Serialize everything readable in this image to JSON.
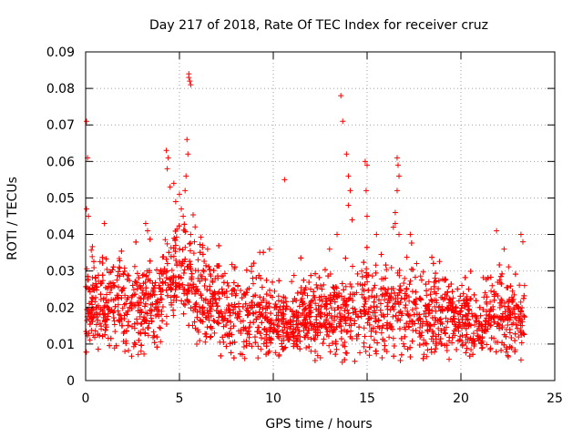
{
  "chart_data": {
    "type": "scatter",
    "title": "Day 217 of 2018, Rate Of TEC Index for receiver cruz",
    "xlabel": "GPS time / hours",
    "ylabel": "ROTI / TECUs",
    "xlim": [
      0,
      25
    ],
    "ylim": [
      0,
      0.09
    ],
    "xticks": [
      "0",
      "5",
      "10",
      "15",
      "20",
      "25"
    ],
    "yticks": [
      "0",
      "0.01",
      "0.02",
      "0.03",
      "0.04",
      "0.05",
      "0.06",
      "0.07",
      "0.08",
      "0.09"
    ],
    "grid": true,
    "marker": "+",
    "color": "#ff0000",
    "series": [
      {
        "name": "ROTI",
        "density_profile": [
          [
            0.0,
            0.02,
            0.006
          ],
          [
            0.5,
            0.022,
            0.006
          ],
          [
            1.0,
            0.02,
            0.006
          ],
          [
            1.5,
            0.021,
            0.006
          ],
          [
            2.0,
            0.02,
            0.006
          ],
          [
            2.5,
            0.019,
            0.007
          ],
          [
            3.0,
            0.02,
            0.007
          ],
          [
            3.5,
            0.021,
            0.006
          ],
          [
            4.0,
            0.024,
            0.006
          ],
          [
            4.5,
            0.028,
            0.006
          ],
          [
            5.0,
            0.03,
            0.006
          ],
          [
            5.5,
            0.028,
            0.007
          ],
          [
            6.0,
            0.025,
            0.007
          ],
          [
            6.5,
            0.022,
            0.006
          ],
          [
            7.0,
            0.02,
            0.006
          ],
          [
            7.5,
            0.019,
            0.006
          ],
          [
            8.0,
            0.018,
            0.006
          ],
          [
            8.5,
            0.019,
            0.006
          ],
          [
            9.0,
            0.018,
            0.005
          ],
          [
            9.5,
            0.017,
            0.005
          ],
          [
            10.0,
            0.016,
            0.005
          ],
          [
            10.5,
            0.015,
            0.005
          ],
          [
            11.0,
            0.015,
            0.004
          ],
          [
            11.5,
            0.016,
            0.005
          ],
          [
            12.0,
            0.017,
            0.005
          ],
          [
            12.5,
            0.017,
            0.005
          ],
          [
            13.0,
            0.018,
            0.005
          ],
          [
            13.5,
            0.019,
            0.006
          ],
          [
            14.0,
            0.02,
            0.006
          ],
          [
            14.5,
            0.021,
            0.006
          ],
          [
            15.0,
            0.02,
            0.006
          ],
          [
            15.5,
            0.019,
            0.006
          ],
          [
            16.0,
            0.019,
            0.006
          ],
          [
            16.5,
            0.02,
            0.006
          ],
          [
            17.0,
            0.02,
            0.006
          ],
          [
            17.5,
            0.019,
            0.006
          ],
          [
            18.0,
            0.018,
            0.006
          ],
          [
            18.5,
            0.019,
            0.006
          ],
          [
            19.0,
            0.018,
            0.006
          ],
          [
            19.5,
            0.017,
            0.005
          ],
          [
            20.0,
            0.017,
            0.005
          ],
          [
            20.5,
            0.016,
            0.005
          ],
          [
            21.0,
            0.017,
            0.005
          ],
          [
            21.5,
            0.018,
            0.006
          ],
          [
            22.0,
            0.019,
            0.006
          ],
          [
            22.5,
            0.018,
            0.006
          ],
          [
            23.0,
            0.017,
            0.005
          ],
          [
            23.4,
            0.018,
            0.005
          ]
        ],
        "spike_points": [
          [
            0.05,
            0.071
          ],
          [
            0.1,
            0.061
          ],
          [
            0.05,
            0.047
          ],
          [
            0.15,
            0.045
          ],
          [
            1.0,
            0.043
          ],
          [
            3.2,
            0.043
          ],
          [
            3.3,
            0.041
          ],
          [
            4.3,
            0.063
          ],
          [
            4.4,
            0.061
          ],
          [
            4.35,
            0.058
          ],
          [
            4.5,
            0.053
          ],
          [
            4.7,
            0.054
          ],
          [
            4.8,
            0.049
          ],
          [
            5.0,
            0.051
          ],
          [
            5.1,
            0.047
          ],
          [
            5.2,
            0.045
          ],
          [
            5.3,
            0.052
          ],
          [
            5.35,
            0.056
          ],
          [
            5.4,
            0.066
          ],
          [
            5.45,
            0.062
          ],
          [
            5.5,
            0.083
          ],
          [
            5.55,
            0.082
          ],
          [
            5.6,
            0.081
          ],
          [
            5.5,
            0.084
          ],
          [
            5.6,
            0.04
          ],
          [
            5.8,
            0.038
          ],
          [
            6.5,
            0.036
          ],
          [
            9.8,
            0.036
          ],
          [
            10.6,
            0.055
          ],
          [
            13.0,
            0.036
          ],
          [
            13.4,
            0.04
          ],
          [
            13.6,
            0.078
          ],
          [
            13.7,
            0.071
          ],
          [
            13.9,
            0.062
          ],
          [
            14.0,
            0.056
          ],
          [
            14.1,
            0.052
          ],
          [
            14.2,
            0.044
          ],
          [
            14.0,
            0.048
          ],
          [
            14.9,
            0.06
          ],
          [
            15.0,
            0.059
          ],
          [
            14.95,
            0.052
          ],
          [
            15.0,
            0.045
          ],
          [
            15.5,
            0.04
          ],
          [
            16.4,
            0.042
          ],
          [
            16.5,
            0.046
          ],
          [
            16.6,
            0.061
          ],
          [
            16.65,
            0.059
          ],
          [
            16.7,
            0.056
          ],
          [
            16.6,
            0.052
          ],
          [
            16.5,
            0.043
          ],
          [
            16.7,
            0.04
          ],
          [
            17.3,
            0.04
          ],
          [
            21.9,
            0.041
          ],
          [
            22.3,
            0.036
          ],
          [
            23.2,
            0.04
          ],
          [
            23.3,
            0.038
          ]
        ]
      }
    ]
  }
}
